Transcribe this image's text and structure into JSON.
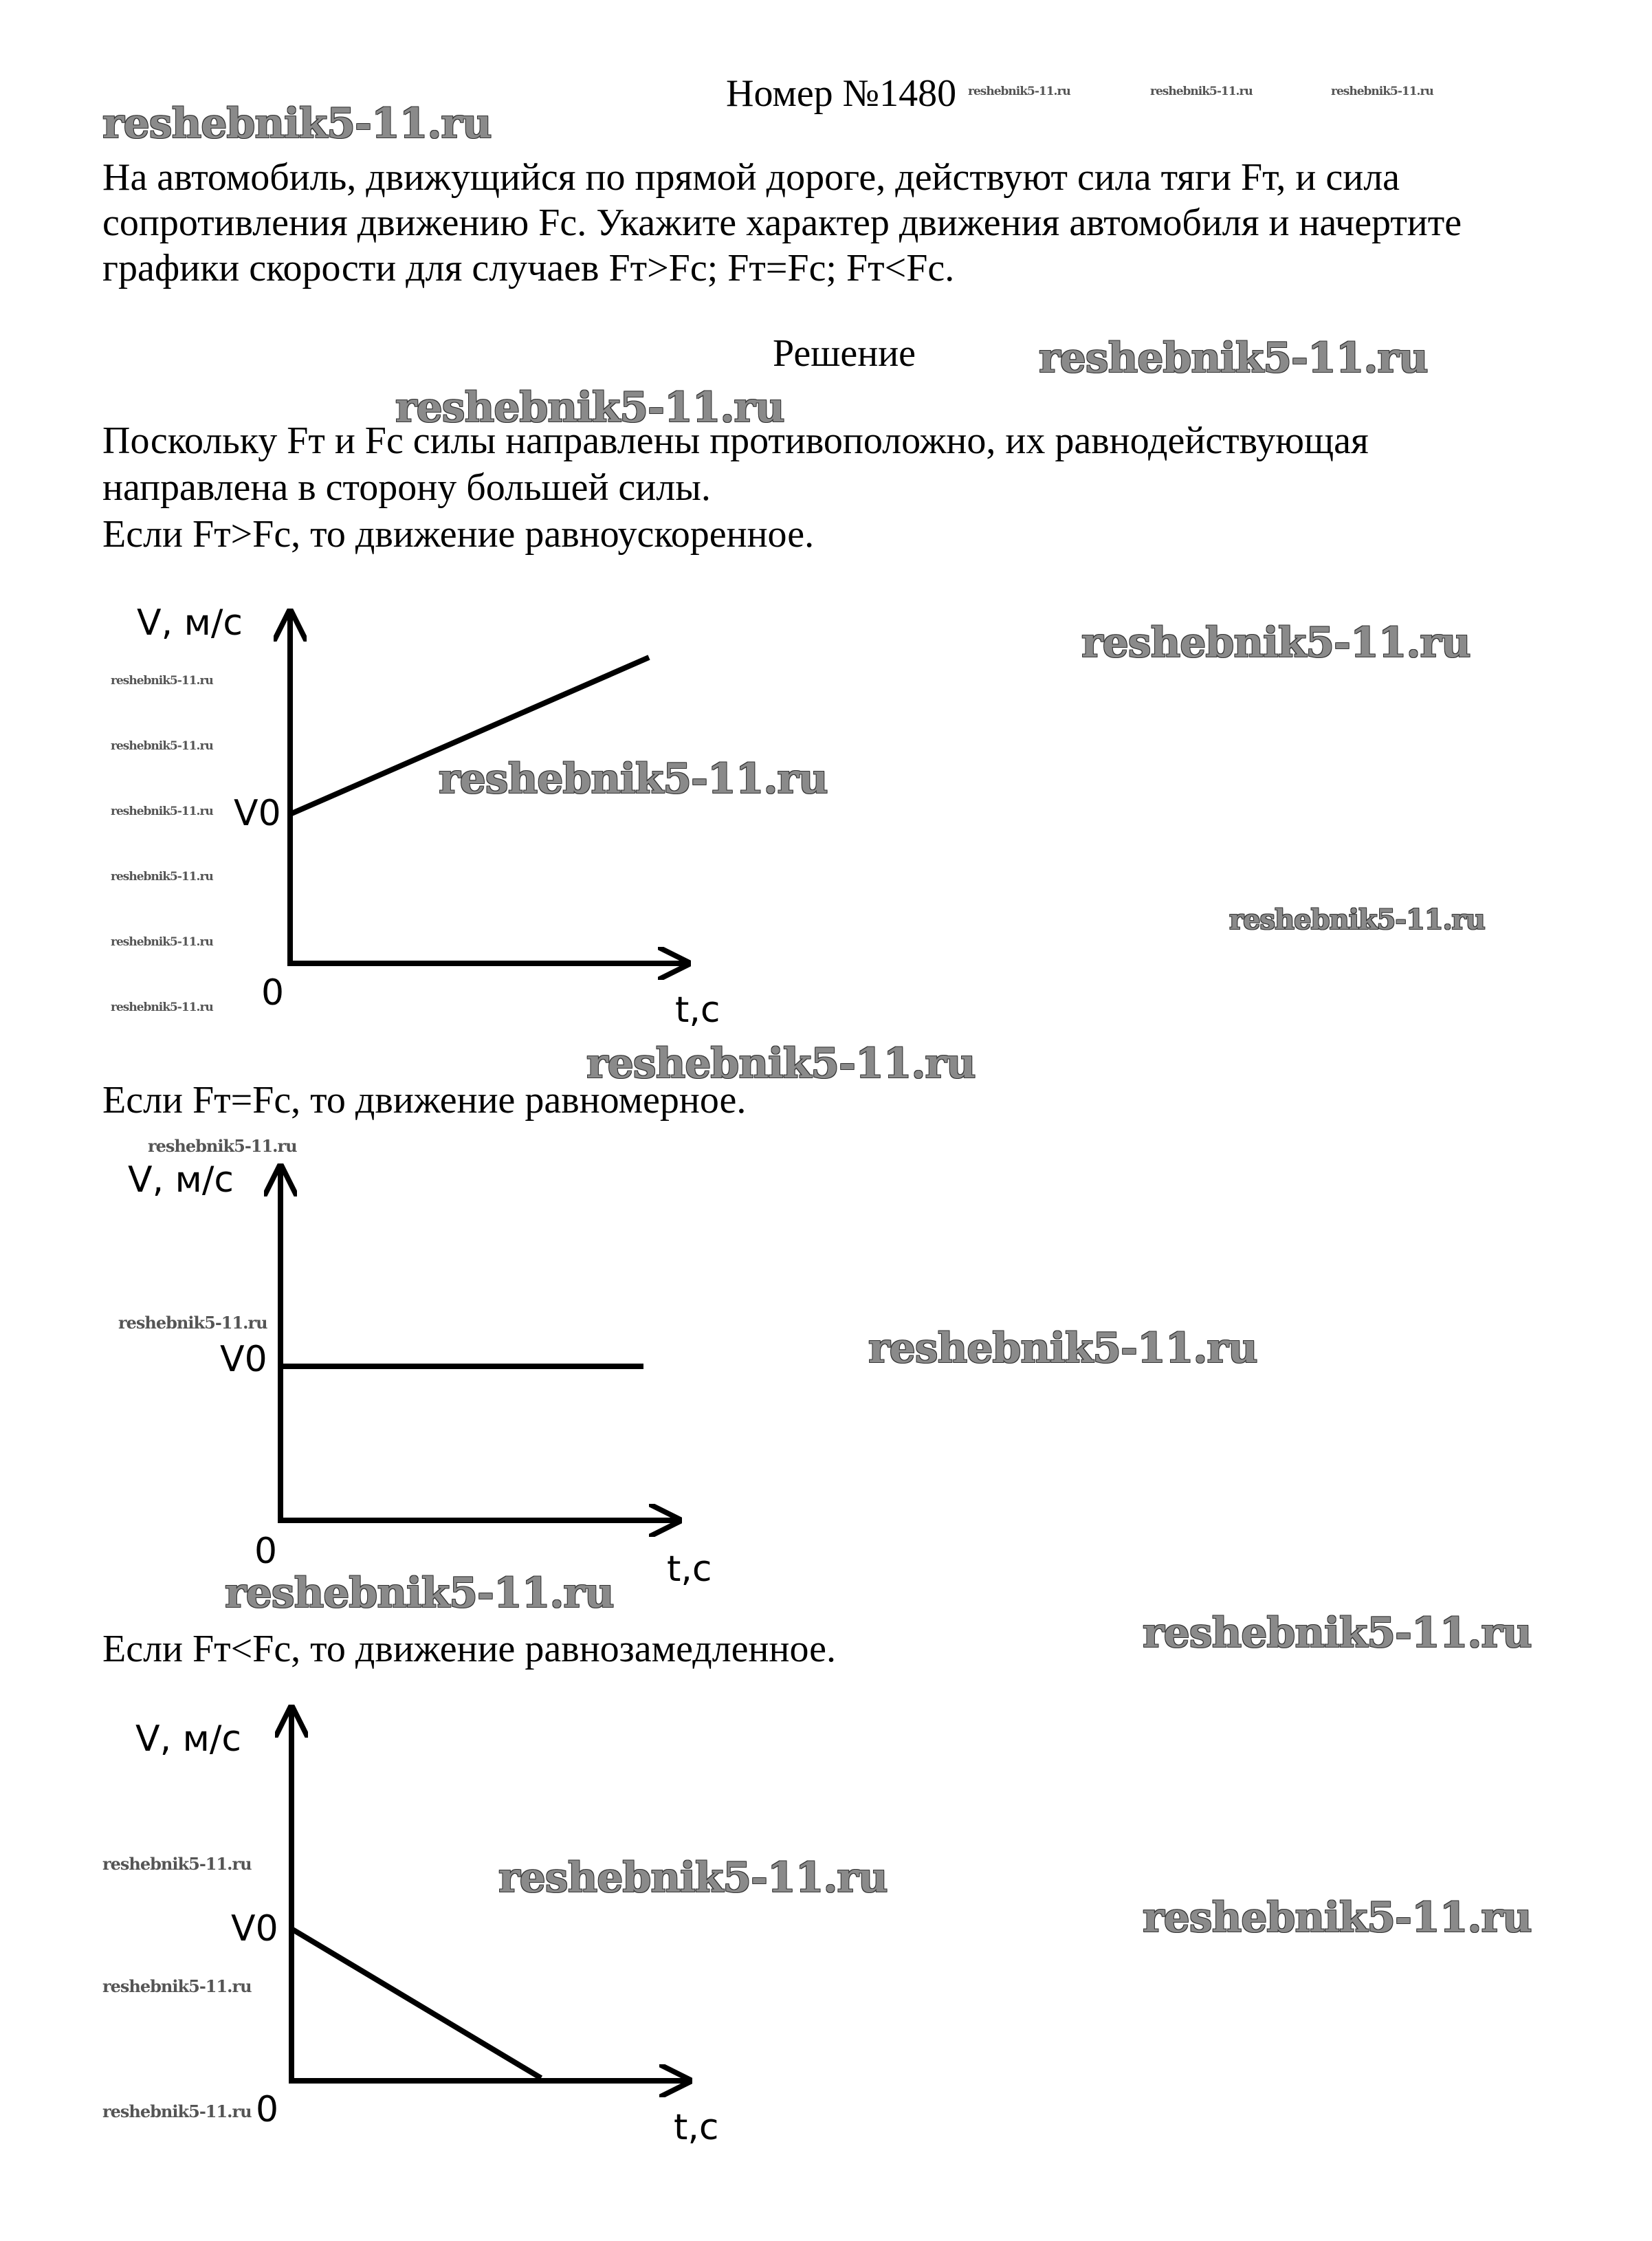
{
  "header": {
    "number_title": "Номер №1480"
  },
  "watermark": "reshebnik5-11.ru",
  "problem": {
    "lines": [
      "На автомобиль, движущийся по прямой дороге, действуют сила тяги Fт, и сила",
      "сопротивления движению Fc. Укажите характер движения автомобиля и начертите",
      "графики скорости для случаев Fт>Fc; Fт=Fc; Fт<Fc."
    ]
  },
  "solution": {
    "heading": "Решение",
    "intro": [
      "Поскольку Fт и Fc силы направлены противоположно, их равнодействующая",
      "направлена в сторону большей силы."
    ],
    "cases": [
      {
        "text": "Если Fт>Fc, то движение равноускоренное.",
        "trend": "increasing"
      },
      {
        "text": "Если Fт=Fc, то движение равномерное.",
        "trend": "constant"
      },
      {
        "text": "Если Fт<Fc, то движение равнозамедленное.",
        "trend": "decreasing"
      }
    ]
  },
  "graph_labels": {
    "y_axis": "V, м/с",
    "x_axis": "t,c",
    "origin": "0",
    "v0": "V0"
  }
}
